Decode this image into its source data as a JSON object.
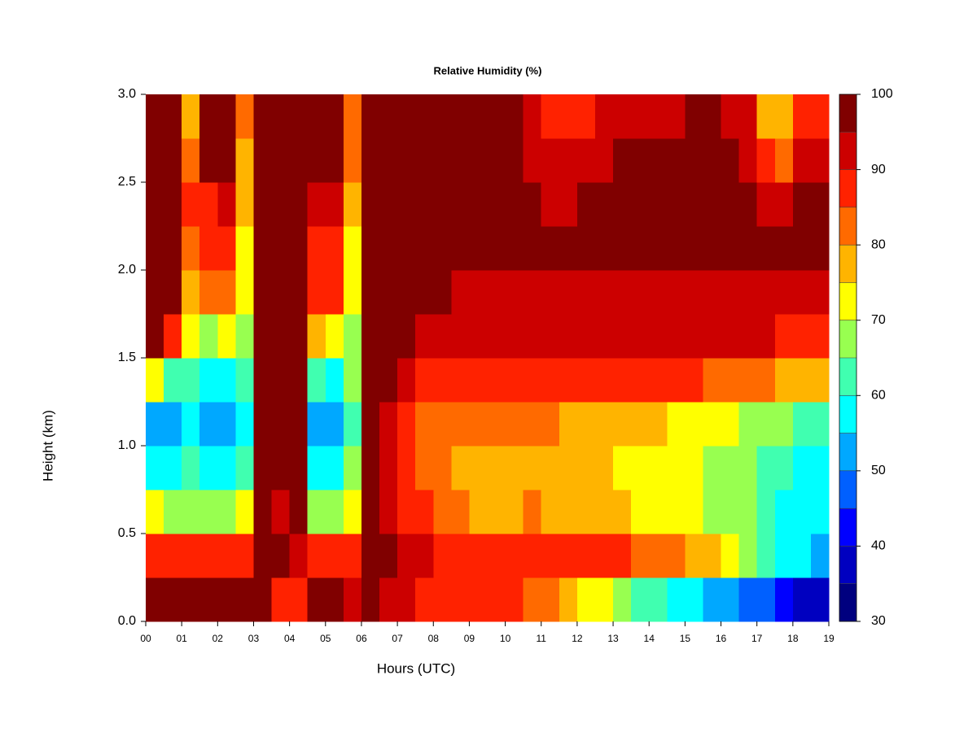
{
  "chart_data": {
    "type": "heatmap",
    "title": "Relative Humidity (%)",
    "xlabel": "Hours (UTC)",
    "ylabel": "Height (km)",
    "xlim": [
      0,
      19
    ],
    "ylim": [
      0,
      3
    ],
    "xticks": [
      {
        "value": 0,
        "label": "00"
      },
      {
        "value": 1,
        "label": "01"
      },
      {
        "value": 2,
        "label": "02"
      },
      {
        "value": 3,
        "label": "03"
      },
      {
        "value": 4,
        "label": "04"
      },
      {
        "value": 5,
        "label": "05"
      },
      {
        "value": 6,
        "label": "06"
      },
      {
        "value": 7,
        "label": "07"
      },
      {
        "value": 8,
        "label": "08"
      },
      {
        "value": 9,
        "label": "09"
      },
      10,
      11,
      12,
      13,
      14,
      15,
      16,
      17,
      18,
      19
    ],
    "yticks": [
      {
        "value": 0,
        "label": "0.0"
      },
      0.5,
      {
        "value": 1,
        "label": "1.0"
      },
      1.5,
      {
        "value": 2,
        "label": "2.0"
      },
      2.5,
      {
        "value": 3,
        "label": "3.0"
      }
    ],
    "x": [
      0.25,
      0.75,
      1.25,
      1.75,
      2.25,
      2.75,
      3.25,
      3.75,
      4.25,
      4.75,
      5.25,
      5.75,
      6.25,
      6.75,
      7.25,
      7.75,
      8.25,
      8.75,
      9.25,
      9.75,
      10.25,
      10.75,
      11.25,
      11.75,
      12.25,
      12.75,
      13.25,
      13.75,
      14.25,
      14.75,
      15.25,
      15.75,
      16.25,
      16.75,
      17.25,
      17.75,
      18.25,
      18.75
    ],
    "y": [
      0.125,
      0.375,
      0.625,
      0.875,
      1.125,
      1.375,
      1.625,
      1.875,
      2.125,
      2.375,
      2.625,
      2.875
    ],
    "values": [
      [
        97,
        90,
        75,
        58,
        55,
        75,
        97,
        97,
        97,
        97,
        97,
        97
      ],
      [
        97,
        88,
        70,
        60,
        55,
        62,
        90,
        97,
        97,
        97,
        97,
        97
      ],
      [
        96,
        88,
        70,
        62,
        60,
        65,
        72,
        80,
        85,
        88,
        85,
        80
      ],
      [
        97,
        88,
        68,
        58,
        52,
        58,
        70,
        82,
        90,
        90,
        97,
        97
      ],
      [
        97,
        88,
        68,
        58,
        52,
        60,
        75,
        85,
        90,
        92,
        97,
        97
      ],
      [
        97,
        90,
        75,
        62,
        60,
        65,
        70,
        72,
        75,
        78,
        80,
        82
      ],
      [
        97,
        97,
        97,
        97,
        97,
        97,
        97,
        97,
        97,
        97,
        97,
        97
      ],
      [
        88,
        97,
        95,
        97,
        97,
        97,
        97,
        97,
        97,
        97,
        97,
        97
      ],
      [
        88,
        95,
        97,
        97,
        97,
        97,
        97,
        97,
        97,
        97,
        97,
        97
      ],
      [
        97,
        88,
        70,
        60,
        52,
        62,
        80,
        88,
        90,
        92,
        97,
        97
      ],
      [
        97,
        88,
        68,
        58,
        52,
        60,
        75,
        88,
        90,
        92,
        97,
        97
      ],
      [
        95,
        88,
        72,
        68,
        62,
        66,
        70,
        72,
        75,
        80,
        82,
        85
      ],
      [
        97,
        97,
        97,
        97,
        97,
        97,
        97,
        97,
        97,
        97,
        97,
        97
      ],
      [
        95,
        97,
        95,
        95,
        95,
        97,
        97,
        97,
        97,
        97,
        97,
        97
      ],
      [
        92,
        95,
        90,
        88,
        88,
        92,
        97,
        97,
        97,
        97,
        97,
        97
      ],
      [
        90,
        92,
        88,
        85,
        85,
        90,
        95,
        97,
        97,
        97,
        97,
        97
      ],
      [
        88,
        90,
        83,
        82,
        83,
        90,
        95,
        97,
        97,
        97,
        97,
        97
      ],
      [
        88,
        90,
        82,
        80,
        82,
        88,
        93,
        95,
        97,
        97,
        97,
        97
      ],
      [
        87,
        90,
        80,
        80,
        82,
        88,
        93,
        95,
        97,
        97,
        97,
        97
      ],
      [
        87,
        90,
        80,
        80,
        82,
        88,
        93,
        95,
        97,
        97,
        97,
        97
      ],
      [
        86,
        90,
        80,
        80,
        82,
        88,
        93,
        95,
        97,
        97,
        97,
        97
      ],
      [
        85,
        90,
        82,
        80,
        82,
        88,
        93,
        95,
        97,
        97,
        95,
        95
      ],
      [
        82,
        90,
        80,
        80,
        82,
        88,
        93,
        95,
        97,
        95,
        92,
        88
      ],
      [
        78,
        88,
        78,
        78,
        80,
        88,
        93,
        95,
        97,
        95,
        92,
        88
      ],
      [
        75,
        88,
        78,
        76,
        78,
        88,
        93,
        95,
        97,
        97,
        93,
        90
      ],
      [
        72,
        88,
        76,
        76,
        78,
        88,
        93,
        95,
        97,
        97,
        95,
        92
      ],
      [
        68,
        86,
        76,
        75,
        78,
        88,
        93,
        95,
        97,
        97,
        97,
        95
      ],
      [
        65,
        85,
        75,
        74,
        76,
        88,
        93,
        95,
        97,
        97,
        97,
        95
      ],
      [
        62,
        83,
        75,
        74,
        76,
        88,
        93,
        95,
        97,
        97,
        97,
        95
      ],
      [
        60,
        82,
        73,
        72,
        75,
        87,
        93,
        95,
        97,
        97,
        97,
        95
      ],
      [
        56,
        80,
        72,
        72,
        74,
        87,
        93,
        95,
        97,
        97,
        97,
        97
      ],
      [
        54,
        78,
        70,
        70,
        73,
        85,
        92,
        95,
        97,
        97,
        97,
        97
      ],
      [
        52,
        75,
        68,
        68,
        72,
        85,
        92,
        95,
        97,
        97,
        97,
        95
      ],
      [
        50,
        70,
        66,
        66,
        70,
        83,
        92,
        95,
        97,
        97,
        95,
        92
      ],
      [
        46,
        65,
        62,
        64,
        68,
        82,
        92,
        95,
        97,
        95,
        88,
        80
      ],
      [
        44,
        60,
        60,
        62,
        66,
        80,
        90,
        95,
        97,
        92,
        85,
        80
      ],
      [
        40,
        56,
        58,
        60,
        64,
        80,
        90,
        95,
        97,
        97,
        92,
        88
      ],
      [
        38,
        54,
        56,
        58,
        62,
        78,
        90,
        95,
        97,
        97,
        95,
        90
      ]
    ],
    "levels": [
      30,
      35,
      40,
      45,
      50,
      55,
      60,
      65,
      70,
      75,
      80,
      85,
      90,
      95,
      100
    ],
    "colors": [
      "#00007f",
      "#0000c0",
      "#0000ff",
      "#0060ff",
      "#00a8ff",
      "#00ffff",
      "#40ffb0",
      "#98ff50",
      "#ffff00",
      "#ffb400",
      "#ff6a00",
      "#ff2200",
      "#cc0000",
      "#800000"
    ],
    "colorbar_ticks": [
      30,
      40,
      50,
      60,
      70,
      80,
      90,
      100
    ]
  }
}
